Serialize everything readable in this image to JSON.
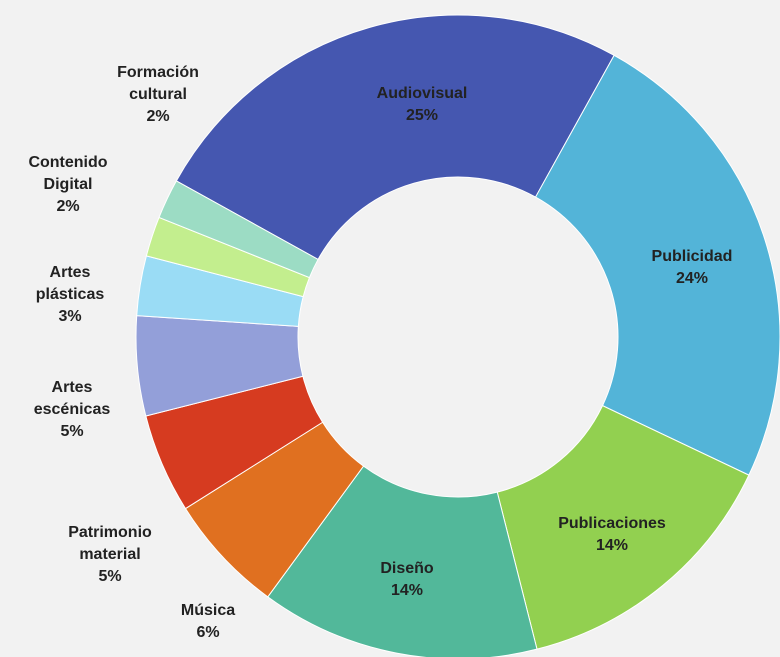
{
  "chart_data": {
    "type": "donut",
    "categories": [
      "Audiovisual",
      "Publicidad",
      "Publicaciones",
      "Diseño",
      "Música",
      "Patrimonio material",
      "Artes escénicas",
      "Artes plásticas",
      "Contenido Digital",
      "Formación cultural"
    ],
    "values": [
      25,
      24,
      14,
      14,
      6,
      5,
      5,
      3,
      2,
      2
    ],
    "value_labels": [
      "25%",
      "24%",
      "14%",
      "14%",
      "6%",
      "5%",
      "5%",
      "3%",
      "2%",
      "2%"
    ],
    "colors": [
      "#4557b0",
      "#53b4d8",
      "#92d050",
      "#52b89a",
      "#e07020",
      "#d63b20",
      "#939fd9",
      "#9adcf5",
      "#c3ee8e",
      "#9cdcc4"
    ]
  }
}
